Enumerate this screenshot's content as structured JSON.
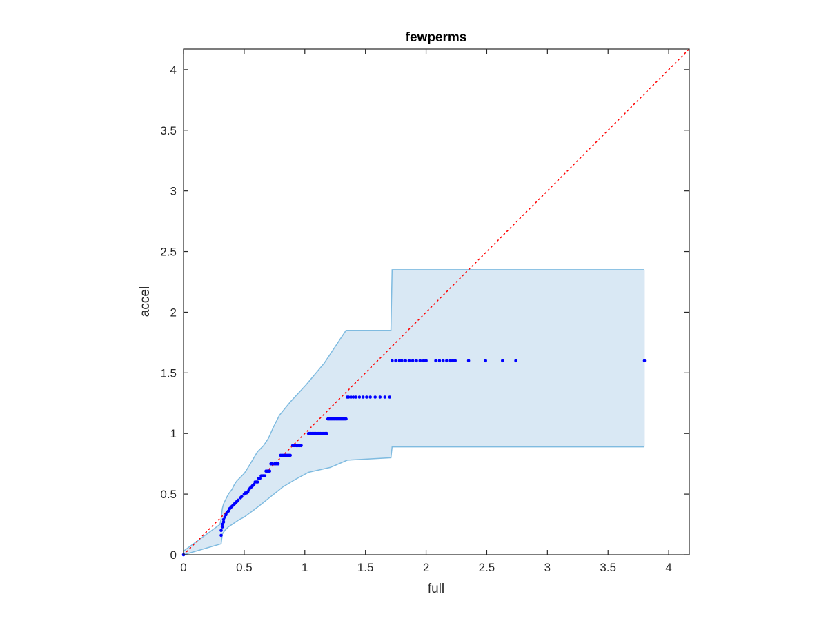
{
  "chart_data": {
    "type": "scatter",
    "title": "fewperms",
    "xlabel": "full",
    "ylabel": "accel",
    "xlim": [
      0,
      4.17
    ],
    "ylim": [
      0,
      4.17
    ],
    "xticks": [
      0,
      0.5,
      1,
      1.5,
      2,
      2.5,
      3,
      3.5,
      4
    ],
    "yticks": [
      0,
      0.5,
      1,
      1.5,
      2,
      2.5,
      3,
      3.5,
      4
    ],
    "xtick_labels": [
      "0",
      "0.5",
      "1",
      "1.5",
      "2",
      "2.5",
      "3",
      "3.5",
      "4"
    ],
    "ytick_labels": [
      "0",
      "0.5",
      "1",
      "1.5",
      "2",
      "2.5",
      "3",
      "3.5",
      "4"
    ],
    "grid": false,
    "colors": {
      "points": "#0000ff",
      "band_fill": "#d9e8f4",
      "band_edge": "#7fbbe0",
      "reference": "#ff0000",
      "axes": "#262626"
    },
    "reference_line": {
      "x": [
        0,
        4.17
      ],
      "y": [
        0,
        4.17
      ],
      "style": "dotted"
    },
    "band": {
      "upper": [
        [
          0,
          0.03
        ],
        [
          0.3,
          0.25
        ],
        [
          0.31,
          0.3
        ],
        [
          0.32,
          0.38
        ],
        [
          0.33,
          0.42
        ],
        [
          0.35,
          0.46
        ],
        [
          0.37,
          0.5
        ],
        [
          0.4,
          0.54
        ],
        [
          0.42,
          0.58
        ],
        [
          0.44,
          0.61
        ],
        [
          0.47,
          0.64
        ],
        [
          0.5,
          0.67
        ],
        [
          0.52,
          0.7
        ],
        [
          0.55,
          0.75
        ],
        [
          0.58,
          0.8
        ],
        [
          0.61,
          0.85
        ],
        [
          0.66,
          0.9
        ],
        [
          0.7,
          0.96
        ],
        [
          0.74,
          1.05
        ],
        [
          0.79,
          1.15
        ],
        [
          0.88,
          1.26
        ],
        [
          1.01,
          1.4
        ],
        [
          1.16,
          1.58
        ],
        [
          1.34,
          1.85
        ],
        [
          1.71,
          1.85
        ],
        [
          1.72,
          2.35
        ],
        [
          3.8,
          2.35
        ]
      ],
      "lower": [
        [
          0,
          0
        ],
        [
          0.31,
          0.09
        ],
        [
          0.32,
          0.17
        ],
        [
          0.34,
          0.2
        ],
        [
          0.37,
          0.23
        ],
        [
          0.4,
          0.25
        ],
        [
          0.43,
          0.27
        ],
        [
          0.46,
          0.29
        ],
        [
          0.5,
          0.31
        ],
        [
          0.54,
          0.34
        ],
        [
          0.58,
          0.37
        ],
        [
          0.62,
          0.4
        ],
        [
          0.67,
          0.44
        ],
        [
          0.72,
          0.48
        ],
        [
          0.77,
          0.52
        ],
        [
          0.82,
          0.56
        ],
        [
          0.92,
          0.62
        ],
        [
          1.03,
          0.68
        ],
        [
          1.21,
          0.72
        ],
        [
          1.35,
          0.78
        ],
        [
          1.71,
          0.8
        ],
        [
          1.72,
          0.89
        ],
        [
          3.8,
          0.89
        ]
      ]
    },
    "series": [
      {
        "x": [
          0,
          0.31,
          0.31,
          0.32,
          0.32,
          0.33,
          0.33,
          0.34,
          0.35,
          0.36,
          0.37,
          0.38,
          0.39,
          0.4,
          0.41,
          0.42,
          0.43,
          0.44,
          0.45,
          0.47,
          0.48,
          0.5,
          0.51,
          0.52,
          0.53,
          0.54,
          0.55,
          0.56,
          0.57,
          0.58,
          0.59,
          0.6,
          0.61,
          0.62,
          0.63,
          0.64,
          0.65,
          0.66,
          0.67,
          0.68,
          0.69,
          0.7,
          0.71,
          0.72,
          0.73,
          0.75,
          0.76,
          0.77,
          0.78,
          0.8,
          0.81,
          0.82,
          0.83,
          0.84,
          0.85,
          0.86,
          0.87,
          0.88,
          0.9,
          0.91,
          0.92,
          0.93,
          0.94,
          0.95,
          0.96,
          0.97,
          1.03,
          1.04,
          1.05,
          1.06,
          1.07,
          1.08,
          1.09,
          1.1,
          1.11,
          1.12,
          1.13,
          1.14,
          1.15,
          1.16,
          1.17,
          1.18,
          1.19,
          1.2,
          1.21,
          1.22,
          1.23,
          1.24,
          1.25,
          1.26,
          1.27,
          1.28,
          1.29,
          1.3,
          1.31,
          1.32,
          1.33,
          1.34,
          1.35,
          1.36,
          1.38,
          1.4,
          1.42,
          1.45,
          1.48,
          1.51,
          1.54,
          1.58,
          1.62,
          1.66,
          1.7,
          1.72,
          1.75,
          1.78,
          1.8,
          1.83,
          1.86,
          1.89,
          1.92,
          1.95,
          1.98,
          2.0,
          2.08,
          2.11,
          2.14,
          2.17,
          2.2,
          2.22,
          2.24,
          2.35,
          2.49,
          2.63,
          2.74,
          3.8
        ],
        "y": [
          0,
          0.16,
          0.2,
          0.23,
          0.25,
          0.27,
          0.29,
          0.31,
          0.33,
          0.35,
          0.36,
          0.38,
          0.39,
          0.4,
          0.41,
          0.42,
          0.43,
          0.44,
          0.45,
          0.47,
          0.48,
          0.5,
          0.51,
          0.51,
          0.52,
          0.54,
          0.55,
          0.56,
          0.57,
          0.58,
          0.6,
          0.6,
          0.6,
          0.63,
          0.63,
          0.65,
          0.65,
          0.65,
          0.65,
          0.69,
          0.69,
          0.69,
          0.69,
          0.75,
          0.75,
          0.75,
          0.75,
          0.75,
          0.75,
          0.82,
          0.82,
          0.82,
          0.82,
          0.82,
          0.82,
          0.82,
          0.82,
          0.82,
          0.9,
          0.9,
          0.9,
          0.9,
          0.9,
          0.9,
          0.9,
          0.9,
          1.0,
          1.0,
          1.0,
          1.0,
          1.0,
          1.0,
          1.0,
          1.0,
          1.0,
          1.0,
          1.0,
          1.0,
          1.0,
          1.0,
          1.0,
          1.0,
          1.12,
          1.12,
          1.12,
          1.12,
          1.12,
          1.12,
          1.12,
          1.12,
          1.12,
          1.12,
          1.12,
          1.12,
          1.12,
          1.12,
          1.12,
          1.12,
          1.3,
          1.3,
          1.3,
          1.3,
          1.3,
          1.3,
          1.3,
          1.3,
          1.3,
          1.3,
          1.3,
          1.3,
          1.3,
          1.6,
          1.6,
          1.6,
          1.6,
          1.6,
          1.6,
          1.6,
          1.6,
          1.6,
          1.6,
          1.6,
          1.6,
          1.6,
          1.6,
          1.6,
          1.6,
          1.6,
          1.6,
          1.6,
          1.6,
          1.6,
          1.6,
          1.6
        ]
      }
    ]
  }
}
